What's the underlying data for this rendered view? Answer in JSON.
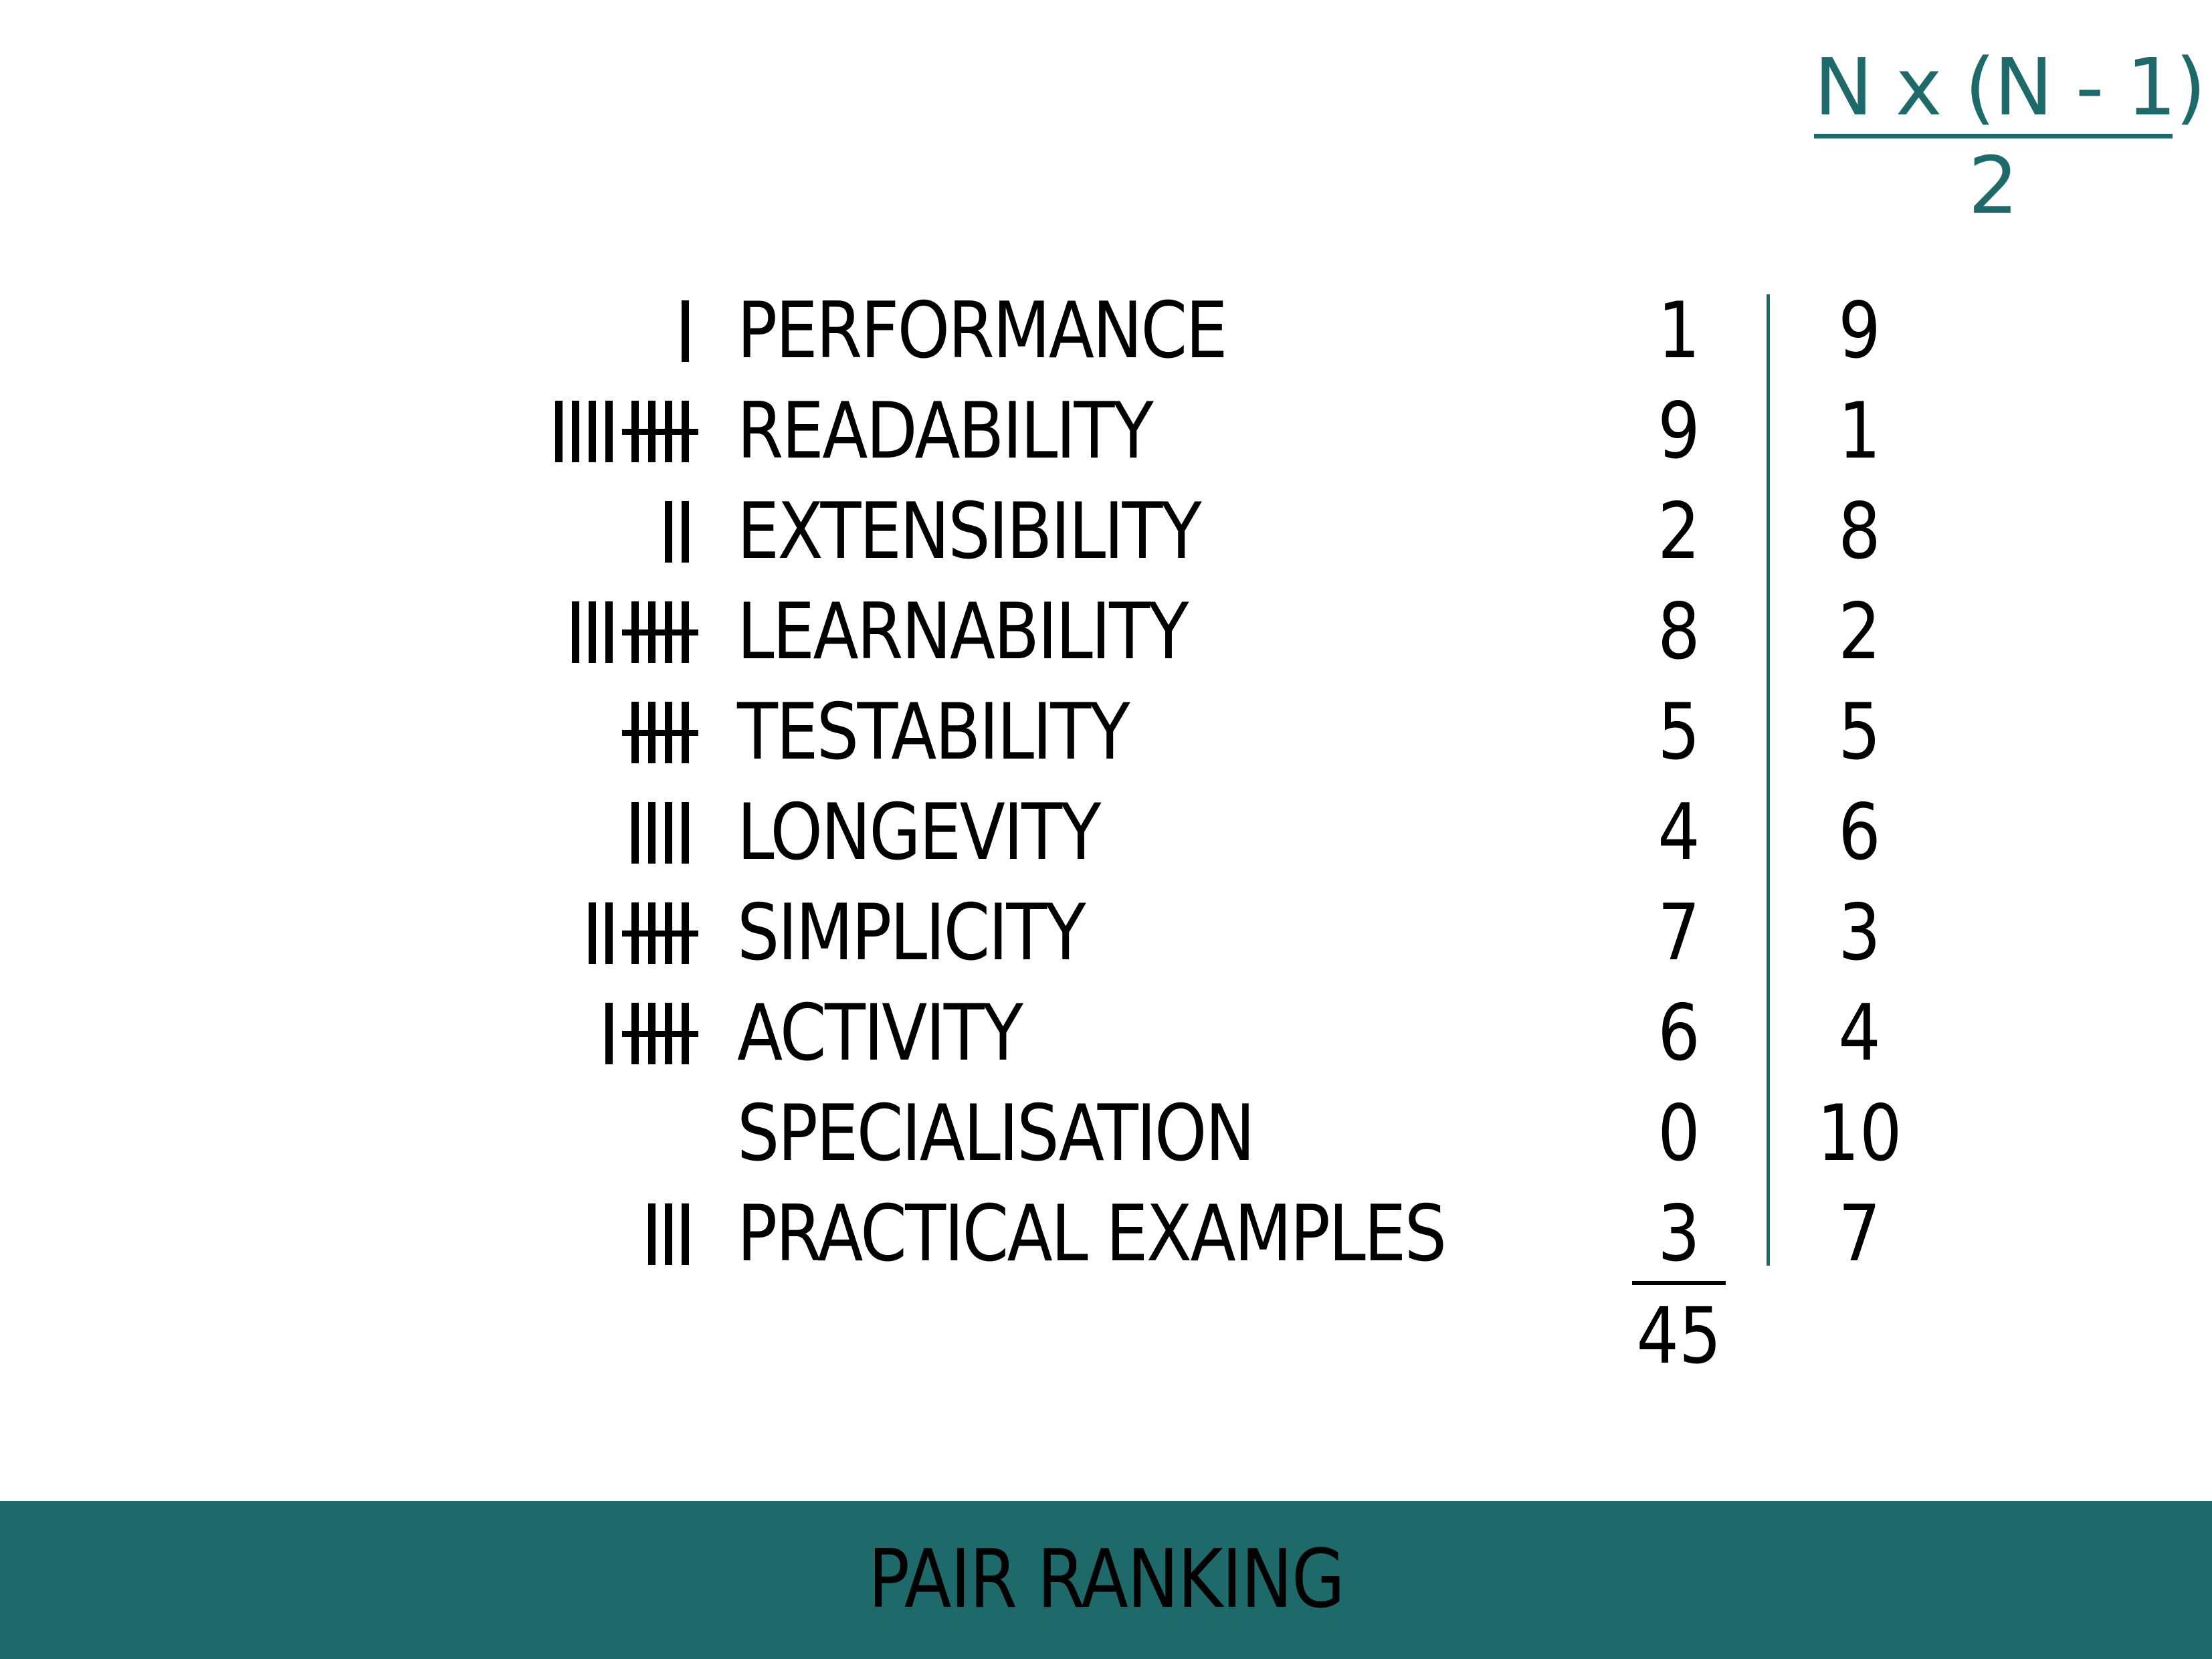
{
  "formula": {
    "numerator": "N x (N - 1)",
    "denominator": "2"
  },
  "rows": [
    {
      "tally": "I",
      "label": "PERFORMANCE",
      "score": "1",
      "inverse": "9"
    },
    {
      "tally": "IIII ||||",
      "label": "READABILITY",
      "score": "9",
      "inverse": "1"
    },
    {
      "tally": "II",
      "label": "EXTENSIBILITY",
      "score": "2",
      "inverse": "8"
    },
    {
      "tally": "III ||||",
      "label": "LEARNABILITY",
      "score": "8",
      "inverse": "2"
    },
    {
      "tally": "||||",
      "label": "TESTABILITY",
      "score": "5",
      "inverse": "5"
    },
    {
      "tally": "IIII",
      "label": "LONGEVITY",
      "score": "4",
      "inverse": "6"
    },
    {
      "tally": "II ||||",
      "label": "SIMPLICITY",
      "score": "7",
      "inverse": "3"
    },
    {
      "tally": "I ||||",
      "label": "ACTIVITY",
      "score": "6",
      "inverse": "4"
    },
    {
      "tally": "",
      "label": "SPECIALISATION",
      "score": "0",
      "inverse": "10"
    },
    {
      "tally": "III",
      "label": "PRACTICAL EXAMPLES",
      "score": "3",
      "inverse": "7"
    }
  ],
  "total": "45",
  "footer": {
    "title": "PAIR RANKING"
  },
  "colors": {
    "accent": "#1e6a6a",
    "text": "#000000",
    "background": "#ffffff"
  }
}
